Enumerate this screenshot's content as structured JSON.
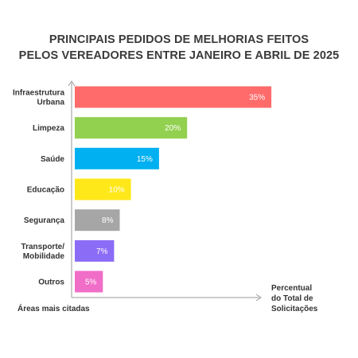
{
  "chart_data": {
    "type": "bar",
    "orientation": "horizontal",
    "title_lines": [
      "PRINCIPAIS PEDIDOS DE MELHORIAS FEITOS",
      "PELOS VEREADORES ENTRE JANEIRO E ABRIL DE 2025"
    ],
    "categories": [
      [
        "Infraestrutura",
        "Urbana"
      ],
      [
        "Limpeza"
      ],
      [
        "Saúde"
      ],
      [
        "Educação"
      ],
      [
        "Segurança"
      ],
      [
        "Transporte/",
        "Mobilidade"
      ],
      [
        "Outros"
      ]
    ],
    "values": [
      35,
      20,
      15,
      10,
      8,
      7,
      5
    ],
    "value_labels": [
      "35%",
      "20%",
      "15%",
      "10%",
      "8%",
      "7%",
      "5%"
    ],
    "colors": [
      "#ff6b6b",
      "#92d050",
      "#00b0f0",
      "#ffe81a",
      "#a6a6a6",
      "#8b6cf6",
      "#f06ec8"
    ],
    "ylabel": "Áreas mais citadas",
    "xlabel_lines": [
      "Percentual",
      "do Total de",
      "Solicitações"
    ],
    "xlim": [
      0,
      35
    ],
    "grid": false,
    "legend": "none"
  }
}
